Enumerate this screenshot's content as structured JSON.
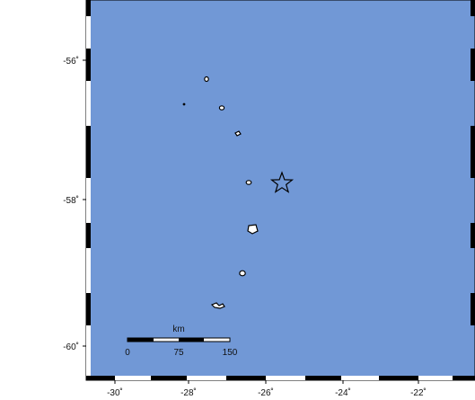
{
  "map": {
    "ocean_color": "#7198d6",
    "land_color": "#ffffff",
    "frame_color": "#000000",
    "epicenter_marker": "star-icon",
    "lat_ticks": [
      "-56˚",
      "-58˚",
      "-60˚"
    ],
    "lon_ticks": [
      "-30˚",
      "-28˚",
      "-26˚",
      "-24˚",
      "-22˚"
    ],
    "scale_bar": {
      "unit": "km",
      "labels": [
        "0",
        "75",
        "150"
      ]
    },
    "islands": [
      "island-1",
      "island-2",
      "island-3",
      "island-4",
      "island-5",
      "island-6",
      "island-7",
      "island-8"
    ]
  }
}
